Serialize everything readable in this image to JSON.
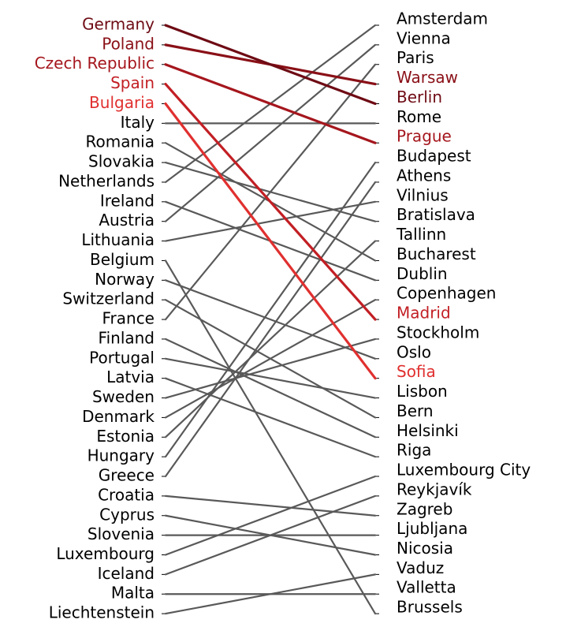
{
  "chart_data": {
    "type": "slope",
    "pairs": [
      {
        "country": "Germany",
        "capital": "Berlin",
        "color": "#6e0b14"
      },
      {
        "country": "Poland",
        "capital": "Warsaw",
        "color": "#8a1017"
      },
      {
        "country": "Czech Republic",
        "capital": "Prague",
        "color": "#a5161d"
      },
      {
        "country": "Spain",
        "capital": "Madrid",
        "color": "#c21f24"
      },
      {
        "country": "Bulgaria",
        "capital": "Sofia",
        "color": "#e0302f"
      },
      {
        "country": "Italy",
        "capital": "Rome"
      },
      {
        "country": "Romania",
        "capital": "Bucharest"
      },
      {
        "country": "Slovakia",
        "capital": "Bratislava"
      },
      {
        "country": "Netherlands",
        "capital": "Amsterdam"
      },
      {
        "country": "Ireland",
        "capital": "Dublin"
      },
      {
        "country": "Austria",
        "capital": "Vienna"
      },
      {
        "country": "Lithuania",
        "capital": "Vilnius"
      },
      {
        "country": "Belgium",
        "capital": "Brussels"
      },
      {
        "country": "Norway",
        "capital": "Oslo"
      },
      {
        "country": "Switzerland",
        "capital": "Bern"
      },
      {
        "country": "France",
        "capital": "Paris"
      },
      {
        "country": "Finland",
        "capital": "Helsinki"
      },
      {
        "country": "Portugal",
        "capital": "Lisbon"
      },
      {
        "country": "Latvia",
        "capital": "Riga"
      },
      {
        "country": "Sweden",
        "capital": "Stockholm"
      },
      {
        "country": "Denmark",
        "capital": "Copenhagen"
      },
      {
        "country": "Estonia",
        "capital": "Tallinn"
      },
      {
        "country": "Hungary",
        "capital": "Budapest"
      },
      {
        "country": "Greece",
        "capital": "Athens"
      },
      {
        "country": "Croatia",
        "capital": "Zagreb"
      },
      {
        "country": "Cyprus",
        "capital": "Nicosia"
      },
      {
        "country": "Slovenia",
        "capital": "Ljubljana"
      },
      {
        "country": "Luxembourg",
        "capital": "Luxembourg City"
      },
      {
        "country": "Iceland",
        "capital": "Reykjavík"
      },
      {
        "country": "Malta",
        "capital": "Valletta"
      },
      {
        "country": "Liechtenstein",
        "capital": "Vaduz"
      }
    ],
    "capitals": [
      "Amsterdam",
      "Vienna",
      "Paris",
      "Warsaw",
      "Berlin",
      "Rome",
      "Prague",
      "Budapest",
      "Athens",
      "Vilnius",
      "Bratislava",
      "Tallinn",
      "Bucharest",
      "Dublin",
      "Copenhagen",
      "Madrid",
      "Stockholm",
      "Oslo",
      "Sofia",
      "Lisbon",
      "Bern",
      "Helsinki",
      "Riga",
      "Luxembourg City",
      "Reykjavík",
      "Zagreb",
      "Ljubljana",
      "Nicosia",
      "Vaduz",
      "Valletta",
      "Brussels"
    ],
    "line_color": "#595959"
  }
}
